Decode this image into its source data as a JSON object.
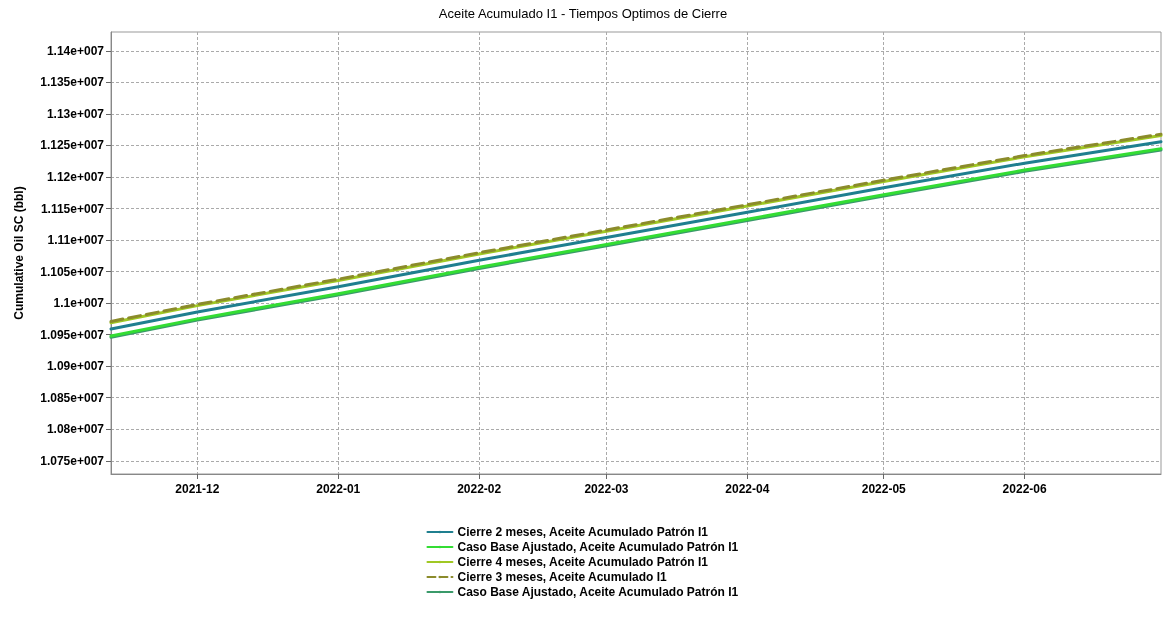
{
  "chart_data": {
    "type": "line",
    "title": "Aceite Acumulado I1 - Tiempos Optimos de Cierre",
    "ylabel": "Cumulative Oil SC (bbl)",
    "x": [
      "2021-11-12",
      "2021-12-01",
      "2022-01-01",
      "2022-02-01",
      "2022-03-01",
      "2022-04-01",
      "2022-05-01",
      "2022-06-01",
      "2022-07-01"
    ],
    "xlim": [
      "2021-11-12",
      "2022-07-01"
    ],
    "xticks": [
      "2021-12",
      "2022-01",
      "2022-02",
      "2022-03",
      "2022-04",
      "2022-05",
      "2022-06"
    ],
    "ylim": [
      10729000,
      11430000
    ],
    "yticks": [
      {
        "value": 10750000,
        "label": "1.075e+007"
      },
      {
        "value": 10800000,
        "label": "1.08e+007"
      },
      {
        "value": 10850000,
        "label": "1.085e+007"
      },
      {
        "value": 10900000,
        "label": "1.09e+007"
      },
      {
        "value": 10950000,
        "label": "1.095e+007"
      },
      {
        "value": 11000000,
        "label": "1.1e+007"
      },
      {
        "value": 11050000,
        "label": "1.105e+007"
      },
      {
        "value": 11100000,
        "label": "1.11e+007"
      },
      {
        "value": 11150000,
        "label": "1.115e+007"
      },
      {
        "value": 11200000,
        "label": "1.12e+007"
      },
      {
        "value": 11250000,
        "label": "1.125e+007"
      },
      {
        "value": 11300000,
        "label": "1.13e+007"
      },
      {
        "value": 11350000,
        "label": "1.135e+007"
      },
      {
        "value": 11400000,
        "label": "1.14e+007"
      }
    ],
    "grid": true,
    "legend": "bottom",
    "marker": "none",
    "series": [
      {
        "name": "Cierre 2 meses, Aceite Acumulado Patrón I1",
        "color": "#1f7f8f",
        "line_style": "solid",
        "values": [
          10959000,
          10986000,
          11026000,
          11068000,
          11104000,
          11144000,
          11183000,
          11222000,
          11256000
        ]
      },
      {
        "name": "Caso Base Ajustado, Aceite Acumulado Patrón I1",
        "color": "#33dd33",
        "line_style": "solid",
        "values": [
          10948000,
          10975000,
          11015000,
          11057000,
          11093000,
          11133000,
          11172000,
          11211000,
          11245000
        ]
      },
      {
        "name": "Cierre 4 meses, Aceite Acumulado Patrón I1",
        "color": "#a0c823",
        "line_style": "solid",
        "values": [
          10969000,
          10996000,
          11036000,
          11078000,
          11114000,
          11154000,
          11193000,
          11232000,
          11266000
        ]
      },
      {
        "name": "Cierre 3 meses, Aceite Acumulado I1",
        "color": "#8b8b2b",
        "line_style": "dashed",
        "values": [
          10971000,
          10998000,
          11038000,
          11080000,
          11116000,
          11156000,
          11195000,
          11234000,
          11268000
        ]
      },
      {
        "name": "Caso Base Ajustado, Aceite Acumulado Patrón I1",
        "color": "#3a9a6a",
        "line_style": "solid",
        "values": [
          10946000,
          10973000,
          11013000,
          11055000,
          11091000,
          11131000,
          11170000,
          11209000,
          11243000
        ]
      }
    ]
  }
}
